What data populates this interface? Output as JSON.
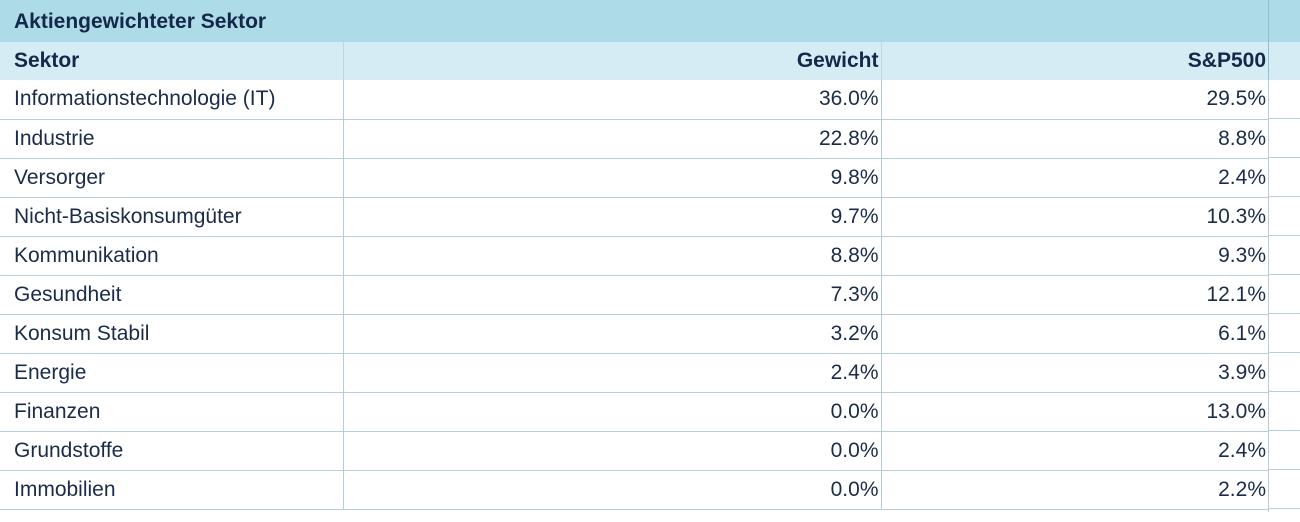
{
  "chart_data": {
    "type": "table",
    "title": "Aktiengewichteter Sektor",
    "columns": [
      "Sektor",
      "Gewicht",
      "S&P500"
    ],
    "rows": [
      {
        "sektor": "Informationstechnologie (IT)",
        "gewicht": "36.0%",
        "sp500": "29.5%"
      },
      {
        "sektor": "Industrie",
        "gewicht": "22.8%",
        "sp500": "8.8%"
      },
      {
        "sektor": "Versorger",
        "gewicht": "9.8%",
        "sp500": "2.4%"
      },
      {
        "sektor": "Nicht-Basiskonsumgüter",
        "gewicht": "9.7%",
        "sp500": "10.3%"
      },
      {
        "sektor": "Kommunikation",
        "gewicht": "8.8%",
        "sp500": "9.3%"
      },
      {
        "sektor": "Gesundheit",
        "gewicht": "7.3%",
        "sp500": "12.1%"
      },
      {
        "sektor": "Konsum Stabil",
        "gewicht": "3.2%",
        "sp500": "6.1%"
      },
      {
        "sektor": "Energie",
        "gewicht": "2.4%",
        "sp500": "3.9%"
      },
      {
        "sektor": "Finanzen",
        "gewicht": "0.0%",
        "sp500": "13.0%"
      },
      {
        "sektor": "Grundstoffe",
        "gewicht": "0.0%",
        "sp500": "2.4%"
      },
      {
        "sektor": "Immobilien",
        "gewicht": "0.0%",
        "sp500": "2.2%"
      }
    ]
  },
  "colors": {
    "title_background": "#aedbe8",
    "header_background": "#d5ecf4",
    "text": "#1b2b4a",
    "grid": "#b6cdd8"
  }
}
